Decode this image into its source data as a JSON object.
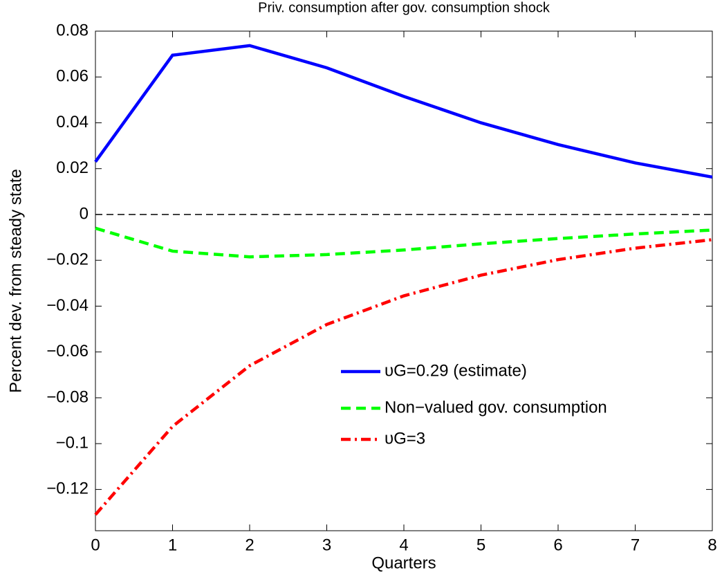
{
  "chart_data": {
    "type": "line",
    "title": "Priv. consumption after gov. consumption shock",
    "xlabel": "Quarters",
    "ylabel": "Percent dev. from steady state",
    "x": [
      0,
      1,
      2,
      3,
      4,
      5,
      6,
      7,
      8
    ],
    "xlim": [
      0,
      8
    ],
    "xticks": [
      0,
      1,
      2,
      3,
      4,
      5,
      6,
      7,
      8
    ],
    "ylim": [
      -0.138,
      0.08
    ],
    "yticks": [
      {
        "value": -0.12,
        "label": "−0.12"
      },
      {
        "value": -0.1,
        "label": "−0.1"
      },
      {
        "value": -0.08,
        "label": "−0.08"
      },
      {
        "value": -0.06,
        "label": "−0.06"
      },
      {
        "value": -0.04,
        "label": "−0.04"
      },
      {
        "value": -0.02,
        "label": "−0.02"
      },
      0,
      0.02,
      0.04,
      0.06,
      0.08
    ],
    "reference_line": 0,
    "legend": "lower right",
    "series": [
      {
        "name": "υG=0.29 (estimate)",
        "color": "#0000ff",
        "linestyle": "solid",
        "values": [
          0.023,
          0.0695,
          0.0737,
          0.064,
          0.0515,
          0.04,
          0.0305,
          0.0225,
          0.0163
        ]
      },
      {
        "name": "Non−valued gov. consumption",
        "color": "#00ff00",
        "linestyle": "dashed",
        "values": [
          -0.006,
          -0.016,
          -0.0185,
          -0.0175,
          -0.0155,
          -0.0128,
          -0.0105,
          -0.0085,
          -0.0068
        ]
      },
      {
        "name": "υG=3",
        "color": "#ff0000",
        "linestyle": "dashdot",
        "values": [
          -0.131,
          -0.0925,
          -0.066,
          -0.048,
          -0.0355,
          -0.0265,
          -0.0197,
          -0.0147,
          -0.011
        ]
      }
    ]
  }
}
